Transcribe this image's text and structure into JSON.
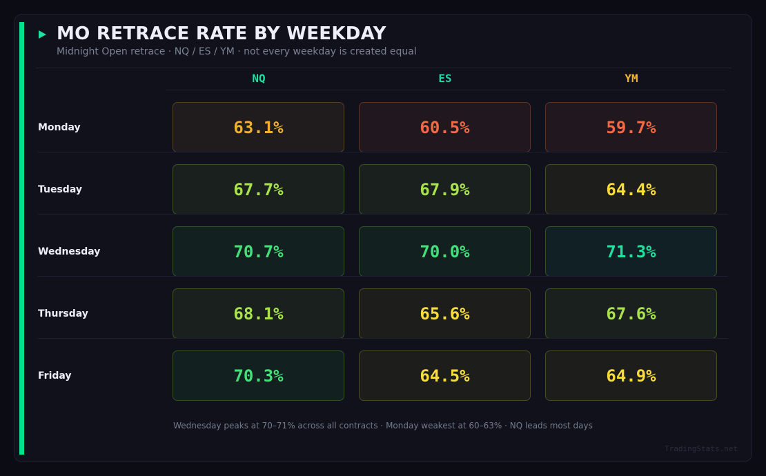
{
  "header": {
    "title": "MO RETRACE RATE BY WEEKDAY",
    "subtitle": "Midnight Open retrace  ·  NQ / ES / YM  ·  not every weekday is created equal"
  },
  "chart_data": {
    "type": "heatmap",
    "title": "MO RETRACE RATE BY WEEKDAY",
    "columns": [
      "NQ",
      "ES",
      "YM"
    ],
    "column_colors": [
      "#1fe0a0",
      "#1fd6a6",
      "#f0b43a"
    ],
    "rows": [
      "Monday",
      "Tuesday",
      "Wednesday",
      "Thursday",
      "Friday"
    ],
    "unit": "%",
    "values": [
      [
        63.1,
        60.5,
        59.7
      ],
      [
        67.7,
        67.9,
        64.4
      ],
      [
        70.7,
        70.0,
        71.3
      ],
      [
        68.1,
        65.6,
        67.6
      ],
      [
        70.3,
        64.5,
        64.9
      ]
    ],
    "color_scale": [
      {
        "min": 0,
        "text": "#f26a45",
        "bg": "#21171e",
        "border": "#5a3428"
      },
      {
        "min": 62,
        "text": "#f0ae35",
        "bg": "#201b1c",
        "border": "#57402a"
      },
      {
        "min": 64,
        "text": "#f8dc3c",
        "bg": "#1d1d1c",
        "border": "#4a4a26"
      },
      {
        "min": 67,
        "text": "#a8e34e",
        "bg": "#1a201e",
        "border": "#3c5428"
      },
      {
        "min": 70,
        "text": "#45df7a",
        "bg": "#12201f",
        "border": "#2f5228"
      },
      {
        "min": 71,
        "text": "#22e0a0",
        "bg": "#102024",
        "border": "#3a4f2a"
      }
    ]
  },
  "footer": "Wednesday peaks at 70–71% across all contracts  ·  Monday weakest at 60–63%  ·  NQ leads most days",
  "watermark": "TradingStats.net"
}
